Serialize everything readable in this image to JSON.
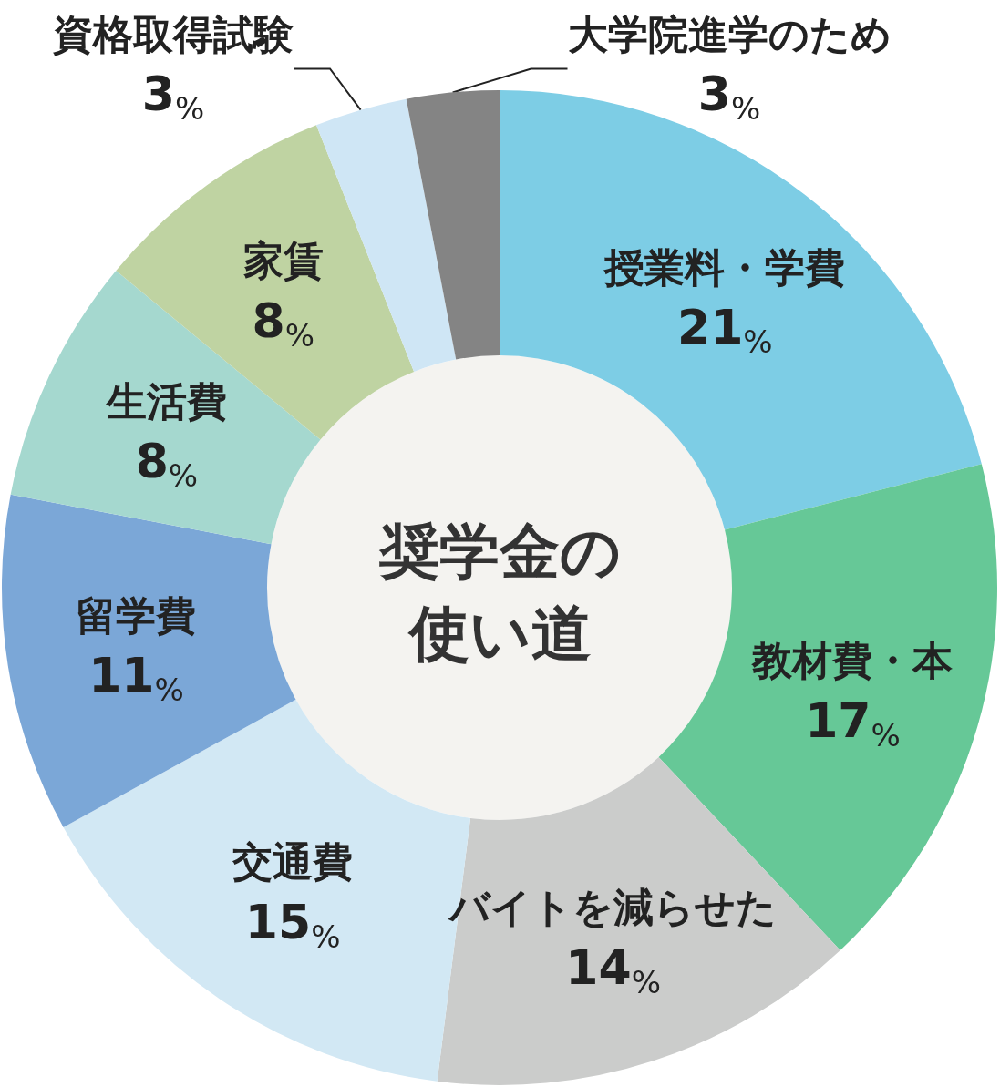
{
  "chart_data": {
    "type": "donut",
    "title": "奨学金の使い道",
    "categories": [
      "授業料・学費",
      "教材費・本",
      "バイトを減らせた",
      "交通費",
      "留学費",
      "生活費",
      "家賃",
      "資格取得試験",
      "大学院進学のため"
    ],
    "values": [
      21,
      17,
      14,
      15,
      11,
      8,
      8,
      3,
      3
    ],
    "value_labels": [
      "21%",
      "17%",
      "14%",
      "15%",
      "11%",
      "8%",
      "8%",
      "3%",
      "3%"
    ],
    "colors": [
      "#7dcde5",
      "#66c897",
      "#cbcccb",
      "#d2e8f4",
      "#7ba7d7",
      "#a5d8cf",
      "#bfd3a2",
      "#cfe6f5",
      "#848484"
    ],
    "legend": false
  }
}
